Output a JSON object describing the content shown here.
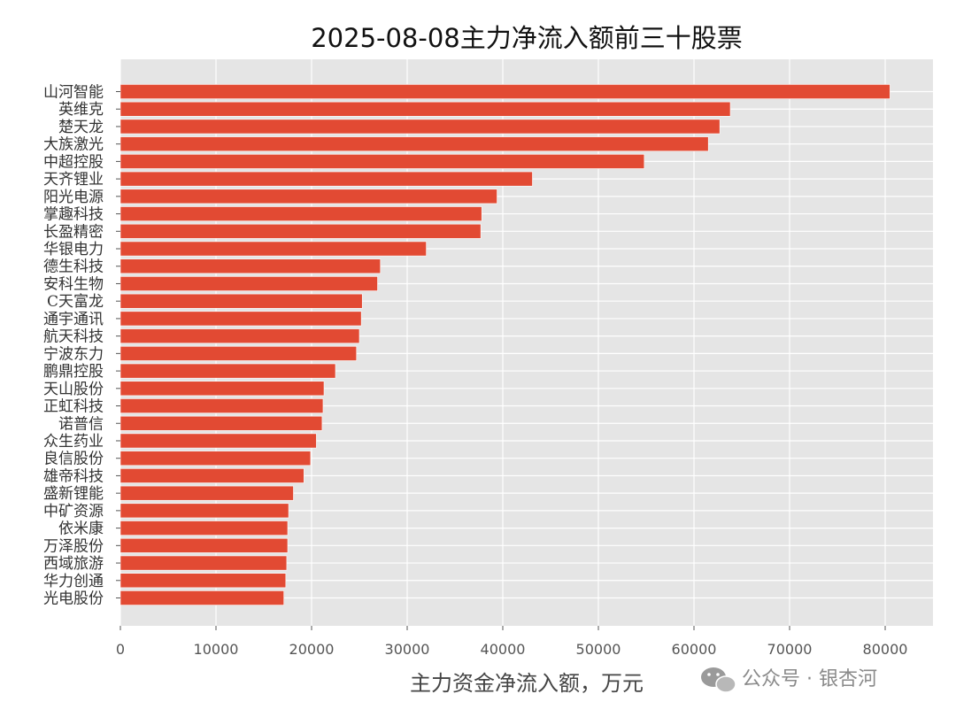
{
  "chart_data": {
    "type": "bar",
    "orientation": "horizontal",
    "title": "2025-08-08主力净流入额前三十股票",
    "xlabel": "主力资金净流入额，万元",
    "ylabel": "",
    "xlim": [
      0,
      85000
    ],
    "xticks": [
      0,
      10000,
      20000,
      30000,
      40000,
      50000,
      60000,
      70000,
      80000
    ],
    "grid": true,
    "bar_color": "#e24a33",
    "background_color": "#e5e5e5",
    "categories": [
      "山河智能",
      "英维克",
      "楚天龙",
      "大族激光",
      "中超控股",
      "天齐锂业",
      "阳光电源",
      "掌趣科技",
      "长盈精密",
      "华银电力",
      "德生科技",
      "安科生物",
      "C天富龙",
      "通宇通讯",
      "航天科技",
      "宁波东力",
      "鹏鼎控股",
      "天山股份",
      "正虹科技",
      "诺普信",
      "众生药业",
      "良信股份",
      "雄帝科技",
      "盛新锂能",
      "中矿资源",
      "依米康",
      "万泽股份",
      "西域旅游",
      "华力创通",
      "光电股份"
    ],
    "values": [
      80500,
      63800,
      62700,
      61500,
      54800,
      43100,
      39400,
      37800,
      37700,
      32000,
      27200,
      26900,
      25300,
      25200,
      25000,
      24700,
      22500,
      21300,
      21200,
      21100,
      20500,
      19900,
      19200,
      18100,
      17600,
      17500,
      17500,
      17400,
      17300,
      17100
    ]
  },
  "watermark": {
    "icon": "wechat-icon",
    "text": "公众号 · 银杏河"
  }
}
